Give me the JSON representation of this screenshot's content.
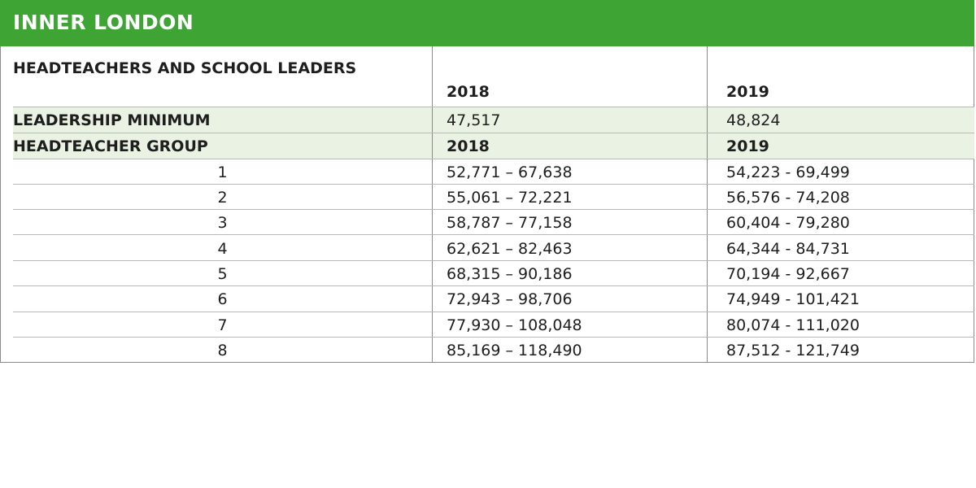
{
  "table": {
    "title": "INNER LONDON",
    "header": {
      "label": "HEADTEACHERS AND SCHOOL LEADERS",
      "year_2018": "2018",
      "year_2019": "2019"
    },
    "minimum": {
      "label": "LEADERSHIP MINIMUM",
      "value_2018": "47,517",
      "value_2019": "48,824"
    },
    "group_header": {
      "label": "HEADTEACHER GROUP",
      "year_2018": "2018",
      "year_2019": "2019"
    },
    "rows": [
      {
        "group": "1",
        "range_2018": "52,771 – 67,638",
        "range_2019": "54,223 - 69,499"
      },
      {
        "group": "2",
        "range_2018": "55,061 – 72,221",
        "range_2019": "56,576 - 74,208"
      },
      {
        "group": "3",
        "range_2018": "58,787 – 77,158",
        "range_2019": "60,404 - 79,280"
      },
      {
        "group": "4",
        "range_2018": "62,621 – 82,463",
        "range_2019": "64,344 - 84,731"
      },
      {
        "group": "5",
        "range_2018": "68,315 – 90,186",
        "range_2019": "70,194 - 92,667"
      },
      {
        "group": "6",
        "range_2018": "72,943 – 98,706",
        "range_2019": "74,949 - 101,421"
      },
      {
        "group": "7",
        "range_2018": "77,930 – 108,048",
        "range_2019": "80,074 - 111,020"
      },
      {
        "group": "8",
        "range_2018": "85,169 – 118,490",
        "range_2019": "87,512 - 121,749"
      }
    ]
  },
  "colors": {
    "title_bar": "#3ea535",
    "band": "#eaf2e3",
    "border": "#8a8a8a"
  }
}
